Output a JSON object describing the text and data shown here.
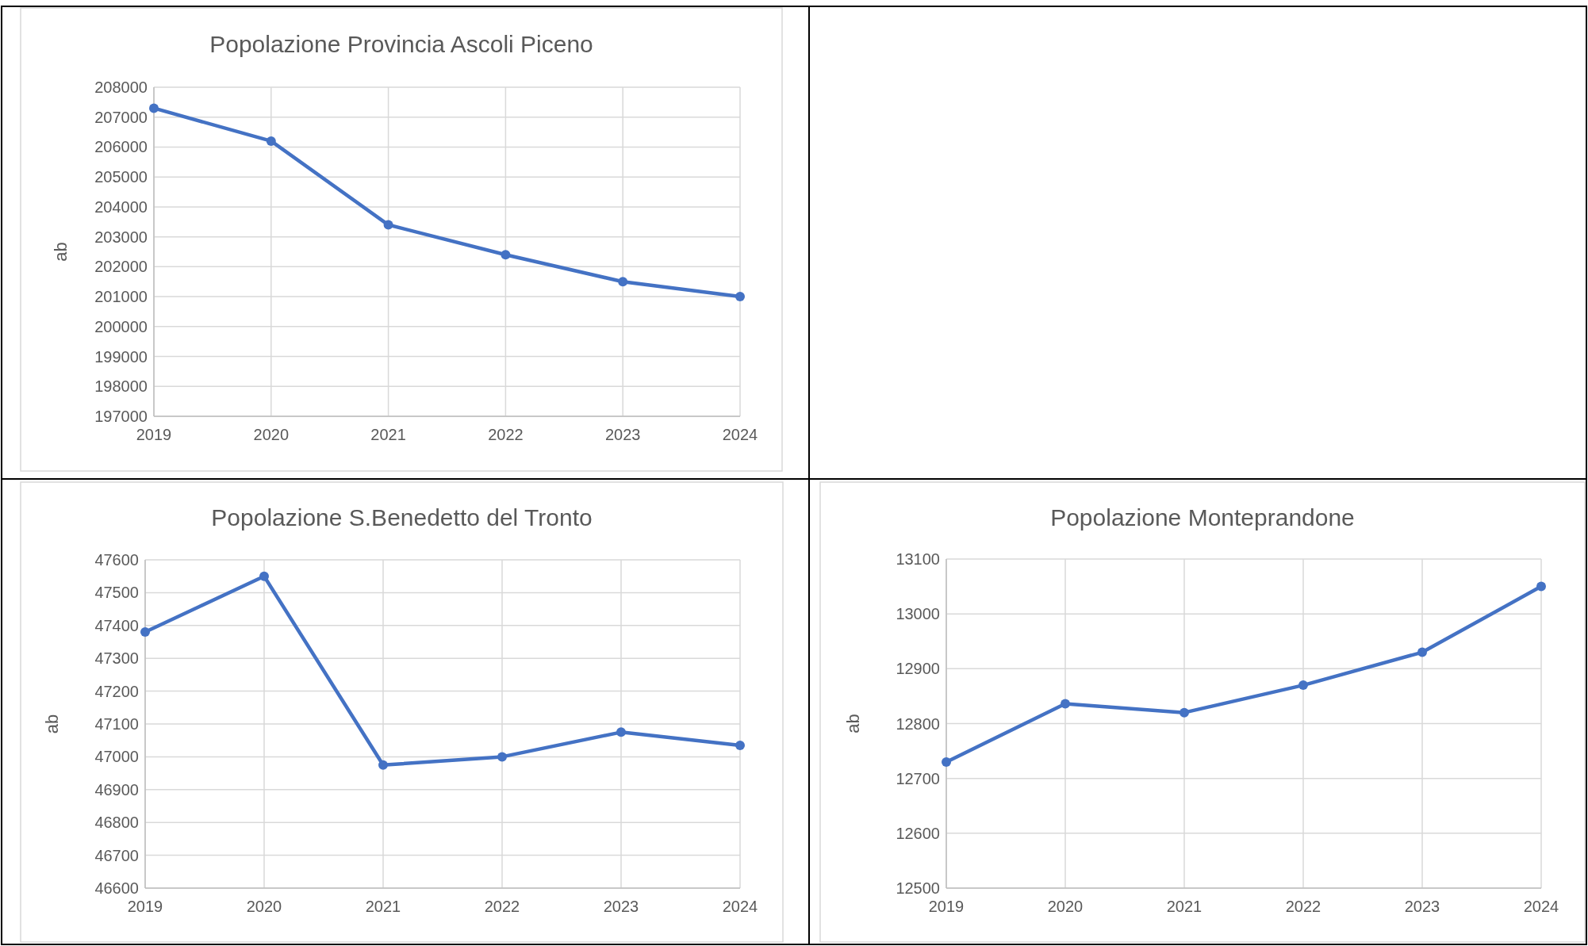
{
  "chart_data": [
    {
      "type": "line",
      "title": "Popolazione Provincia Ascoli Piceno",
      "ylabel": "ab",
      "categories": [
        "2019",
        "2020",
        "2021",
        "2022",
        "2023",
        "2024"
      ],
      "series": [
        {
          "color": "#4472c4",
          "values": [
            207300,
            206200,
            203400,
            202400,
            201500,
            201000
          ]
        }
      ],
      "ylim": [
        197000,
        208000
      ],
      "yticks": [
        197000,
        198000,
        199000,
        200000,
        201000,
        202000,
        203000,
        204000,
        205000,
        206000,
        207000,
        208000
      ],
      "grid": true,
      "marker": "circle"
    },
    {
      "type": "line",
      "title": "Popolazione S.Benedetto del Tronto",
      "ylabel": "ab",
      "categories": [
        "2019",
        "2020",
        "2021",
        "2022",
        "2023",
        "2024"
      ],
      "series": [
        {
          "color": "#4472c4",
          "values": [
            47380,
            47550,
            46975,
            47000,
            47075,
            47035
          ]
        }
      ],
      "ylim": [
        46600,
        47600
      ],
      "yticks": [
        46600,
        46700,
        46800,
        46900,
        47000,
        47100,
        47200,
        47300,
        47400,
        47500,
        47600
      ],
      "grid": true,
      "marker": "circle"
    },
    {
      "type": "line",
      "title": "Popolazione Monteprandone",
      "ylabel": "ab",
      "categories": [
        "2019",
        "2020",
        "2021",
        "2022",
        "2023",
        "2024"
      ],
      "series": [
        {
          "color": "#4472c4",
          "values": [
            12730,
            12836,
            12820,
            12870,
            12930,
            13050
          ]
        }
      ],
      "ylim": [
        12500,
        13100
      ],
      "yticks": [
        12500,
        12600,
        12700,
        12800,
        12900,
        13000,
        13100
      ],
      "grid": true,
      "marker": "circle"
    }
  ]
}
